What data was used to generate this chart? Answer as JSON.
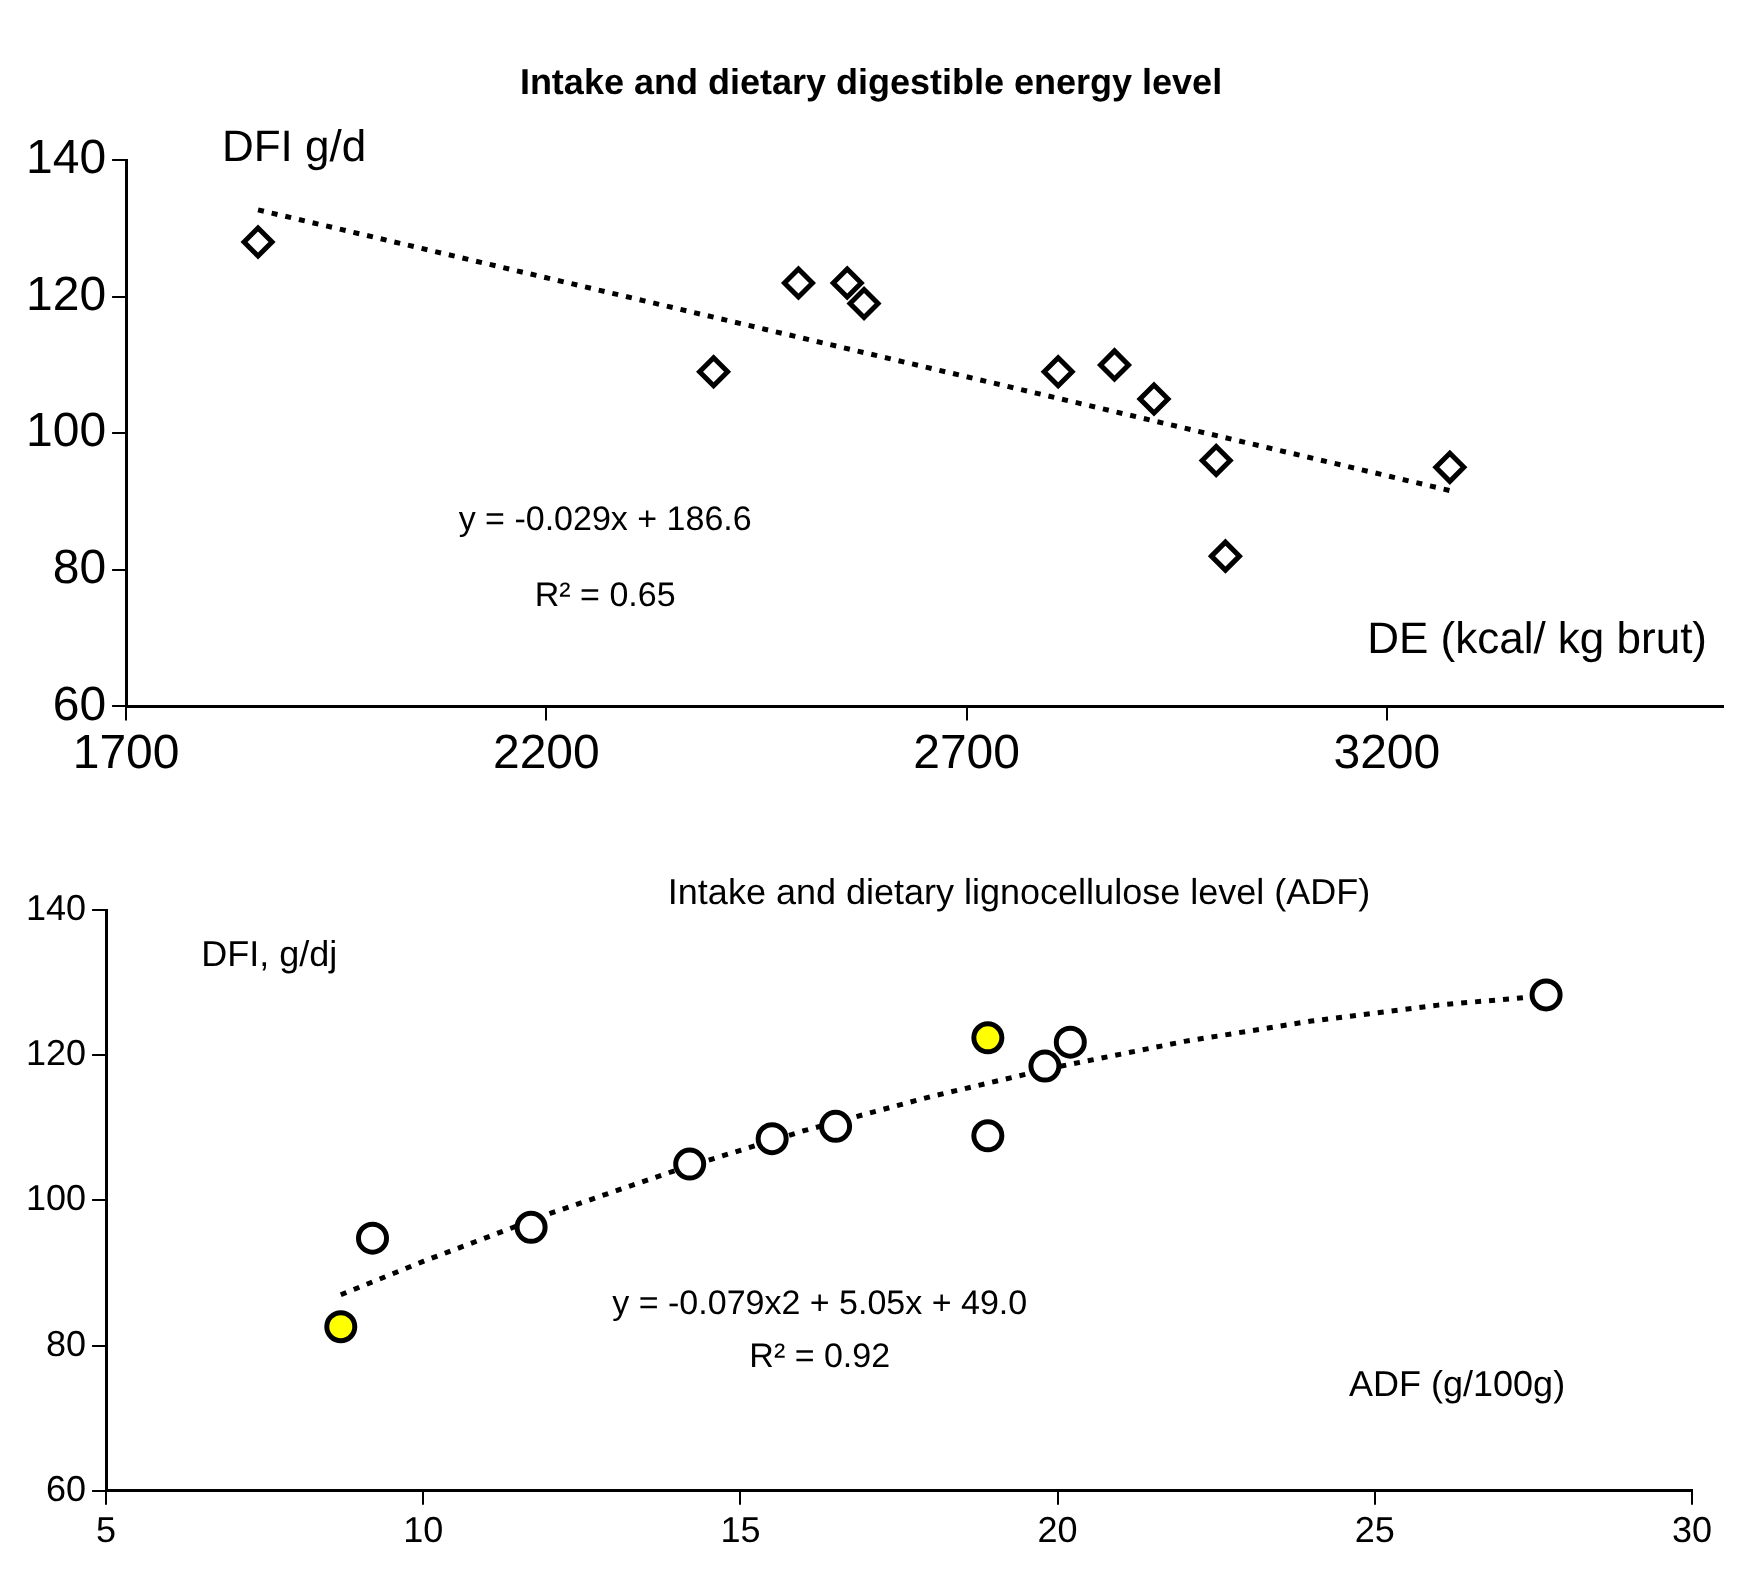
{
  "chart_data": [
    {
      "type": "scatter",
      "title": "Intake and dietary digestible energy level",
      "xlabel": "DE (kcal/ kg brut)",
      "ylabel": "DFI g/d",
      "annotations": [
        "y = -0.029x + 186.6",
        "R² = 0.65"
      ],
      "series": [
        {
          "type": "scatter",
          "color": "#000000",
          "marker": "diamond",
          "x": [
            1857,
            2399,
            2500,
            2558,
            2578,
            2809,
            2876,
            2923,
            2997,
            3008,
            3275
          ],
          "values": [
            128,
            109,
            122,
            122,
            119,
            109,
            110,
            105,
            96,
            82,
            95
          ]
        },
        {
          "type": "line",
          "color": "#000000",
          "marker": "none",
          "line_style": "dotted",
          "x": [
            1857,
            3275
          ],
          "values": [
            132.7,
            91.6
          ]
        }
      ],
      "xlim": [
        1700,
        3600
      ],
      "xticks": [
        1700,
        2200,
        2700,
        3200
      ],
      "ylim": [
        60,
        140
      ],
      "yticks": [
        60,
        80,
        100,
        120,
        140
      ],
      "grid": false,
      "legend": false
    },
    {
      "type": "scatter",
      "title": "Intake and dietary lignocellulose level (ADF)",
      "xlabel": "ADF (g/100g)",
      "ylabel": "DFI, g/dj",
      "annotations": [
        "y = -0.079x2 + 5.05x + 49.0",
        "R² = 0.92"
      ],
      "series": [
        {
          "type": "scatter",
          "color": "#000000",
          "marker": "circle",
          "colors": [
            "#ffff00",
            "#ffffff",
            "#ffffff",
            "#ffffff",
            "#ffffff",
            "#ffffff",
            "#ffff00",
            "#ffffff",
            "#ffffff",
            "#ffffff",
            "#ffffff"
          ],
          "x": [
            8.7,
            9.2,
            11.7,
            14.2,
            15.5,
            16.5,
            18.9,
            18.9,
            19.8,
            20.2,
            27.7
          ],
          "values": [
            82.6,
            94.8,
            96.3,
            105,
            108.5,
            110.2,
            122.4,
            108.9,
            118.5,
            121.8,
            128.3
          ]
        },
        {
          "type": "line",
          "color": "#000000",
          "marker": "none",
          "line_style": "dotted",
          "x": [
            8.7,
            10,
            12,
            14,
            16,
            18,
            20,
            22,
            24,
            26,
            27.7
          ],
          "values": [
            87,
            91.6,
            98.2,
            104.2,
            109.6,
            114.3,
            118.4,
            121.9,
            124.7,
            126.9,
            128.2
          ]
        }
      ],
      "xlim": [
        5,
        30
      ],
      "xticks": [
        5,
        10,
        15,
        20,
        25,
        30
      ],
      "ylim": [
        60,
        140
      ],
      "yticks": [
        60,
        80,
        100,
        120,
        140
      ],
      "grid": false,
      "legend": false
    }
  ]
}
